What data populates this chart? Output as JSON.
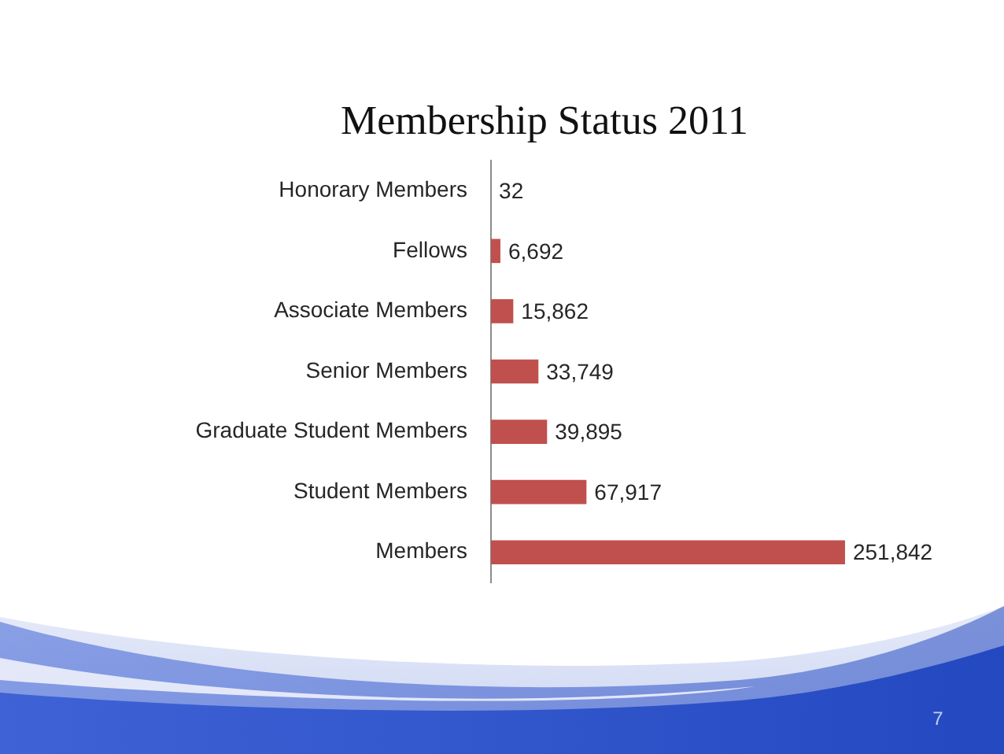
{
  "chart_data": {
    "type": "bar",
    "orientation": "horizontal",
    "title": "Membership Status 2011",
    "categories": [
      "Honorary Members",
      "Fellows",
      "Associate Members",
      "Senior Members",
      "Graduate Student Members",
      "Student Members",
      "Members"
    ],
    "values": [
      32,
      6692,
      15862,
      33749,
      39895,
      67917,
      251842
    ],
    "color": "#c0504d",
    "value_labels": [
      "32",
      "6,692",
      "15,862",
      "33,749",
      "39,895",
      "67,917",
      "251,842"
    ],
    "annotations": [
      "7"
    ]
  }
}
